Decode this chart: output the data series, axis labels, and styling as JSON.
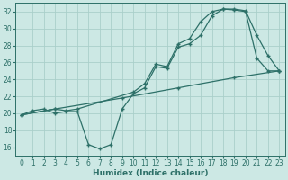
{
  "xlabel": "Humidex (Indice chaleur)",
  "bg_color": "#cce8e4",
  "grid_color": "#aacfca",
  "line_color": "#2d7068",
  "xlim": [
    -0.5,
    23.5
  ],
  "ylim": [
    15.0,
    33.0
  ],
  "yticks": [
    16,
    18,
    20,
    22,
    24,
    26,
    28,
    30,
    32
  ],
  "xticks": [
    0,
    1,
    2,
    3,
    4,
    5,
    6,
    7,
    8,
    9,
    10,
    11,
    12,
    13,
    14,
    15,
    16,
    17,
    18,
    19,
    20,
    21,
    22,
    23
  ],
  "line_straight_x": [
    0,
    3,
    9,
    14,
    19,
    23
  ],
  "line_straight_y": [
    19.8,
    20.5,
    21.8,
    23.0,
    24.2,
    25.0
  ],
  "line_wavy_x": [
    0,
    1,
    2,
    3,
    4,
    5,
    6,
    7,
    8,
    9,
    10,
    11,
    12,
    13,
    14,
    15,
    16,
    17,
    18,
    19,
    20,
    21,
    22,
    23
  ],
  "line_wavy_y": [
    19.8,
    20.3,
    20.5,
    20.0,
    20.2,
    20.2,
    16.3,
    15.8,
    16.3,
    20.5,
    22.3,
    23.0,
    25.5,
    25.3,
    27.8,
    28.2,
    29.2,
    31.5,
    32.3,
    32.2,
    32.0,
    26.5,
    25.0,
    25.0
  ],
  "line_top_x": [
    0,
    3,
    4,
    5,
    10,
    11,
    12,
    13,
    14,
    15,
    16,
    17,
    18,
    19,
    20,
    21,
    22,
    23
  ],
  "line_top_y": [
    19.8,
    20.5,
    20.3,
    20.5,
    22.5,
    23.5,
    25.8,
    25.5,
    28.2,
    28.8,
    30.8,
    32.0,
    32.3,
    32.3,
    32.1,
    29.2,
    26.8,
    25.0
  ]
}
